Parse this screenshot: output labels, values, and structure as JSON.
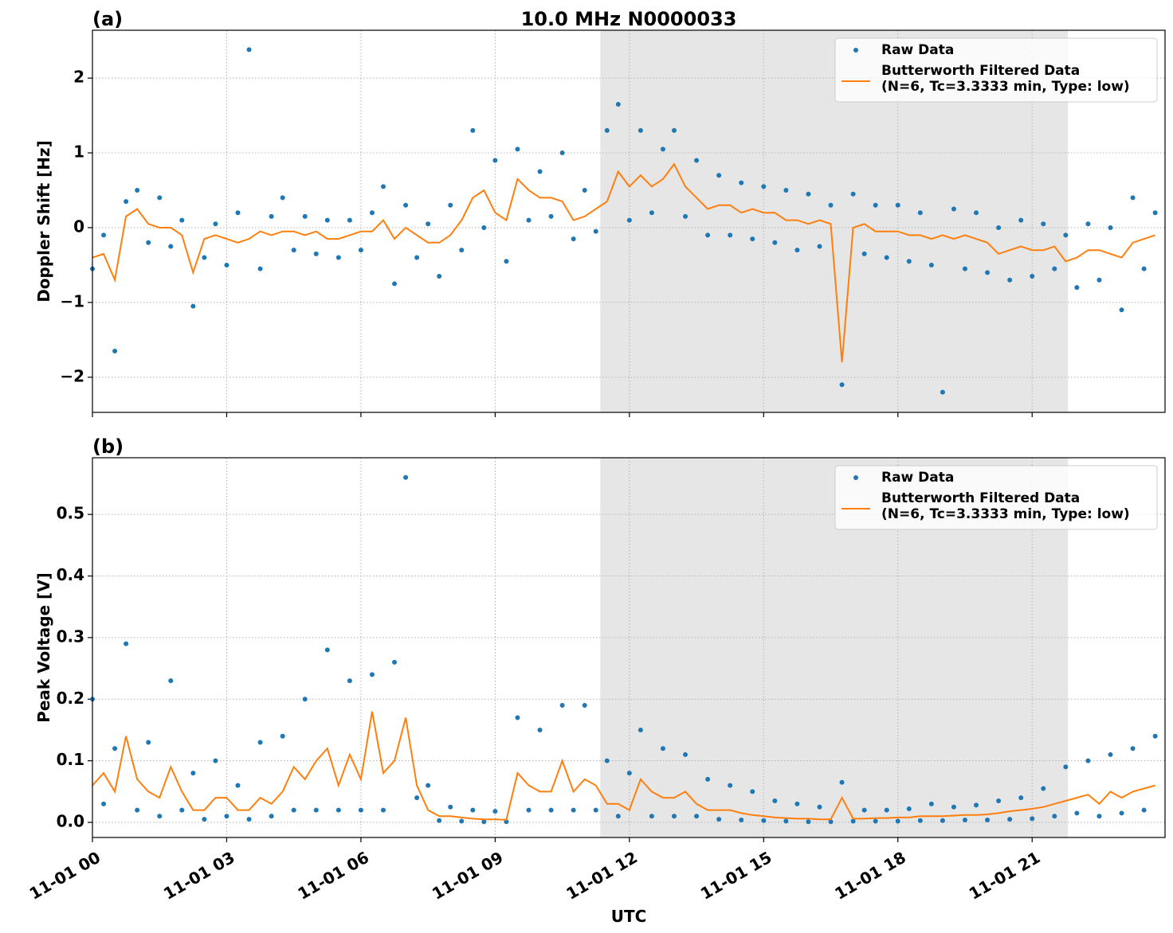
{
  "chart_data": [
    {
      "type": "scatter-line",
      "panel_label": "(a)",
      "title": "10.0 MHz N0000033",
      "ylabel": "Doppler Shift [Hz]",
      "xlim": [
        0,
        23.97
      ],
      "ylim": [
        -2.47,
        2.64
      ],
      "grid": true,
      "legend": "upper right",
      "shade": [
        11.35,
        21.8
      ],
      "shade_color": "#e6e6e6",
      "xticks": [
        {
          "value": 0,
          "label": "11-01 00"
        },
        {
          "value": 3,
          "label": "11-01 03"
        },
        {
          "value": 6,
          "label": "11-01 06"
        },
        {
          "value": 9,
          "label": "11-01 09"
        },
        {
          "value": 12,
          "label": "11-01 12"
        },
        {
          "value": 15,
          "label": "11-01 15"
        },
        {
          "value": 18,
          "label": "11-01 18"
        },
        {
          "value": 21,
          "label": "11-01 21"
        }
      ],
      "yticks": [
        {
          "value": -2,
          "label": "−2"
        },
        {
          "value": -1,
          "label": "−1"
        },
        0,
        1,
        2
      ],
      "x": [
        0,
        0.25,
        0.5,
        0.75,
        1,
        1.25,
        1.5,
        1.75,
        2,
        2.25,
        2.5,
        2.75,
        3,
        3.25,
        3.5,
        3.75,
        4,
        4.25,
        4.5,
        4.75,
        5,
        5.25,
        5.5,
        5.75,
        6,
        6.25,
        6.5,
        6.75,
        7,
        7.25,
        7.5,
        7.75,
        8,
        8.25,
        8.5,
        8.75,
        9,
        9.25,
        9.5,
        9.75,
        10,
        10.25,
        10.5,
        10.75,
        11,
        11.25,
        11.5,
        11.75,
        12,
        12.25,
        12.5,
        12.75,
        13,
        13.25,
        13.5,
        13.75,
        14,
        14.25,
        14.5,
        14.75,
        15,
        15.25,
        15.5,
        15.75,
        16,
        16.25,
        16.5,
        16.75,
        17,
        17.25,
        17.5,
        17.75,
        18,
        18.25,
        18.5,
        18.75,
        19,
        19.25,
        19.5,
        19.75,
        20,
        20.25,
        20.5,
        20.75,
        21,
        21.25,
        21.5,
        21.75,
        22,
        22.25,
        22.5,
        22.75,
        23,
        23.25,
        23.5,
        23.75
      ],
      "series": [
        {
          "name": "Raw Data",
          "color": "#1f77b4",
          "kind": "scatter",
          "values": [
            -0.55,
            -0.1,
            -1.65,
            0.35,
            0.5,
            -0.2,
            0.4,
            -0.25,
            0.1,
            -1.05,
            -0.4,
            0.05,
            -0.5,
            0.2,
            2.38,
            -0.55,
            0.15,
            0.4,
            -0.3,
            0.15,
            -0.35,
            0.1,
            -0.4,
            0.1,
            -0.3,
            0.2,
            0.55,
            -0.75,
            0.3,
            -0.4,
            0.05,
            -0.65,
            0.3,
            -0.3,
            1.3,
            0.0,
            0.9,
            -0.45,
            1.05,
            0.1,
            0.75,
            0.15,
            1.0,
            -0.15,
            0.5,
            -0.05,
            1.3,
            1.65,
            0.1,
            1.3,
            0.2,
            1.05,
            1.3,
            0.15,
            0.9,
            -0.1,
            0.7,
            -0.1,
            0.6,
            -0.15,
            0.55,
            -0.2,
            0.5,
            -0.3,
            0.45,
            -0.25,
            0.3,
            -2.1,
            0.45,
            -0.35,
            0.3,
            -0.4,
            0.3,
            -0.45,
            0.2,
            -0.5,
            -2.2,
            0.25,
            -0.55,
            0.2,
            -0.6,
            0.0,
            -0.7,
            0.1,
            -0.65,
            0.05,
            -0.55,
            -0.1,
            -0.8,
            0.05,
            -0.7,
            0.0,
            -1.1,
            0.4,
            -0.55,
            0.2
          ]
        },
        {
          "name": "Butterworth Filtered Data\n(N=6, Tc=3.3333 min, Type: low)",
          "color": "#ff7f0e",
          "kind": "line",
          "values": [
            -0.4,
            -0.35,
            -0.7,
            0.15,
            0.25,
            0.05,
            0.0,
            0.0,
            -0.1,
            -0.6,
            -0.15,
            -0.1,
            -0.15,
            -0.2,
            -0.15,
            -0.05,
            -0.1,
            -0.05,
            -0.05,
            -0.1,
            -0.05,
            -0.15,
            -0.15,
            -0.1,
            -0.05,
            -0.05,
            0.1,
            -0.15,
            0.0,
            -0.1,
            -0.2,
            -0.2,
            -0.1,
            0.1,
            0.4,
            0.5,
            0.2,
            0.1,
            0.65,
            0.5,
            0.4,
            0.4,
            0.35,
            0.1,
            0.15,
            0.25,
            0.35,
            0.75,
            0.55,
            0.7,
            0.55,
            0.65,
            0.85,
            0.55,
            0.4,
            0.25,
            0.3,
            0.3,
            0.2,
            0.25,
            0.2,
            0.2,
            0.1,
            0.1,
            0.05,
            0.1,
            0.05,
            -1.8,
            0.0,
            0.05,
            -0.05,
            -0.05,
            -0.05,
            -0.1,
            -0.1,
            -0.15,
            -0.1,
            -0.15,
            -0.1,
            -0.15,
            -0.2,
            -0.35,
            -0.3,
            -0.25,
            -0.3,
            -0.3,
            -0.25,
            -0.45,
            -0.4,
            -0.3,
            -0.3,
            -0.35,
            -0.4,
            -0.2,
            -0.15,
            -0.1
          ]
        }
      ]
    },
    {
      "type": "scatter-line",
      "panel_label": "(b)",
      "ylabel": "Peak Voltage [V]",
      "xlabel": "UTC",
      "xlim": [
        0,
        23.97
      ],
      "ylim": [
        -0.0245,
        0.592
      ],
      "grid": true,
      "legend": "upper right",
      "shade": [
        11.35,
        21.8
      ],
      "shade_color": "#e6e6e6",
      "xticks": [
        {
          "value": 0,
          "label": "11-01 00"
        },
        {
          "value": 3,
          "label": "11-01 03"
        },
        {
          "value": 6,
          "label": "11-01 06"
        },
        {
          "value": 9,
          "label": "11-01 09"
        },
        {
          "value": 12,
          "label": "11-01 12"
        },
        {
          "value": 15,
          "label": "11-01 15"
        },
        {
          "value": 18,
          "label": "11-01 18"
        },
        {
          "value": 21,
          "label": "11-01 21"
        }
      ],
      "yticks": [
        {
          "value": 0,
          "label": "0.0"
        },
        0.1,
        0.2,
        0.3,
        0.4,
        0.5
      ],
      "x": [
        0,
        0.25,
        0.5,
        0.75,
        1,
        1.25,
        1.5,
        1.75,
        2,
        2.25,
        2.5,
        2.75,
        3,
        3.25,
        3.5,
        3.75,
        4,
        4.25,
        4.5,
        4.75,
        5,
        5.25,
        5.5,
        5.75,
        6,
        6.25,
        6.5,
        6.75,
        7,
        7.25,
        7.5,
        7.75,
        8,
        8.25,
        8.5,
        8.75,
        9,
        9.25,
        9.5,
        9.75,
        10,
        10.25,
        10.5,
        10.75,
        11,
        11.25,
        11.5,
        11.75,
        12,
        12.25,
        12.5,
        12.75,
        13,
        13.25,
        13.5,
        13.75,
        14,
        14.25,
        14.5,
        14.75,
        15,
        15.25,
        15.5,
        15.75,
        16,
        16.25,
        16.5,
        16.75,
        17,
        17.25,
        17.5,
        17.75,
        18,
        18.25,
        18.5,
        18.75,
        19,
        19.25,
        19.5,
        19.75,
        20,
        20.25,
        20.5,
        20.75,
        21,
        21.25,
        21.5,
        21.75,
        22,
        22.25,
        22.5,
        22.75,
        23,
        23.25,
        23.5,
        23.75
      ],
      "series": [
        {
          "name": "Raw Data",
          "color": "#1f77b4",
          "kind": "scatter",
          "values": [
            0.2,
            0.03,
            0.12,
            0.29,
            0.02,
            0.13,
            0.01,
            0.23,
            0.02,
            0.08,
            0.005,
            0.1,
            0.01,
            0.06,
            0.005,
            0.13,
            0.01,
            0.14,
            0.02,
            0.2,
            0.02,
            0.28,
            0.02,
            0.23,
            0.02,
            0.24,
            0.02,
            0.26,
            0.56,
            0.04,
            0.06,
            0.003,
            0.025,
            0.002,
            0.02,
            0.001,
            0.018,
            0.001,
            0.17,
            0.02,
            0.15,
            0.02,
            0.19,
            0.02,
            0.19,
            0.02,
            0.1,
            0.01,
            0.08,
            0.15,
            0.01,
            0.12,
            0.01,
            0.11,
            0.01,
            0.07,
            0.005,
            0.06,
            0.004,
            0.05,
            0.003,
            0.035,
            0.002,
            0.03,
            0.001,
            0.025,
            0.001,
            0.065,
            0.002,
            0.02,
            0.002,
            0.02,
            0.002,
            0.022,
            0.003,
            0.03,
            0.003,
            0.025,
            0.004,
            0.028,
            0.004,
            0.035,
            0.005,
            0.04,
            0.006,
            0.055,
            0.01,
            0.09,
            0.015,
            0.1,
            0.01,
            0.11,
            0.015,
            0.12,
            0.02,
            0.14
          ]
        },
        {
          "name": "Butterworth Filtered Data\n(N=6, Tc=3.3333 min, Type: low)",
          "color": "#ff7f0e",
          "kind": "line",
          "values": [
            0.06,
            0.08,
            0.05,
            0.14,
            0.07,
            0.05,
            0.04,
            0.09,
            0.05,
            0.02,
            0.02,
            0.04,
            0.04,
            0.02,
            0.02,
            0.04,
            0.03,
            0.05,
            0.09,
            0.07,
            0.1,
            0.12,
            0.06,
            0.11,
            0.07,
            0.18,
            0.08,
            0.1,
            0.17,
            0.06,
            0.02,
            0.01,
            0.01,
            0.008,
            0.006,
            0.005,
            0.005,
            0.004,
            0.08,
            0.06,
            0.05,
            0.05,
            0.1,
            0.05,
            0.07,
            0.06,
            0.03,
            0.03,
            0.02,
            0.07,
            0.05,
            0.04,
            0.04,
            0.05,
            0.03,
            0.02,
            0.02,
            0.02,
            0.015,
            0.012,
            0.01,
            0.008,
            0.007,
            0.006,
            0.006,
            0.005,
            0.005,
            0.04,
            0.006,
            0.006,
            0.007,
            0.007,
            0.008,
            0.008,
            0.01,
            0.01,
            0.01,
            0.011,
            0.012,
            0.012,
            0.013,
            0.015,
            0.018,
            0.02,
            0.022,
            0.025,
            0.03,
            0.035,
            0.04,
            0.045,
            0.03,
            0.05,
            0.04,
            0.05,
            0.055,
            0.06
          ]
        }
      ]
    }
  ]
}
